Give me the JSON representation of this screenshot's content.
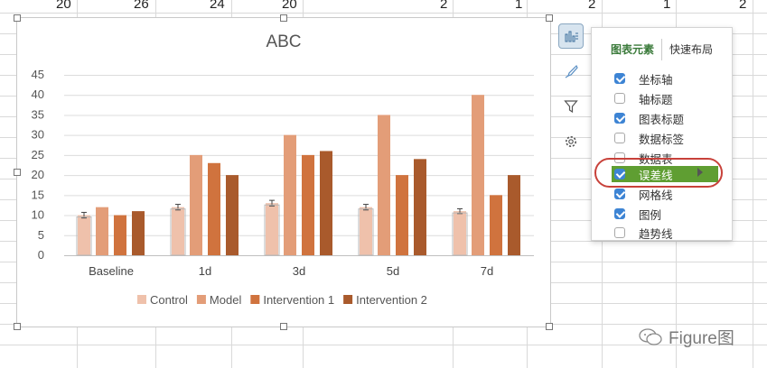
{
  "sheet": {
    "top_row_values": [
      "20",
      "26",
      "24",
      "20",
      "2",
      "1",
      "2",
      "1",
      "2"
    ]
  },
  "chart_data": {
    "type": "bar",
    "title": "ABC",
    "categories": [
      "Baseline",
      "1d",
      "3d",
      "5d",
      "7d"
    ],
    "series": [
      {
        "name": "Control",
        "color": "#efc1ab",
        "values": [
          10,
          12,
          13,
          12,
          11
        ],
        "error": [
          0.7,
          0.7,
          0.7,
          0.7,
          0.6
        ]
      },
      {
        "name": "Model",
        "color": "#e39d78",
        "values": [
          12,
          25,
          30,
          35,
          40
        ]
      },
      {
        "name": "Intervention 1",
        "color": "#d0733e",
        "values": [
          10,
          23,
          25,
          20,
          15
        ]
      },
      {
        "name": "Intervention 2",
        "color": "#a95a2c",
        "values": [
          11,
          20,
          26,
          24,
          20
        ]
      }
    ],
    "ylim": [
      0,
      45
    ],
    "yticks": [
      "0",
      "5",
      "10",
      "15",
      "20",
      "25",
      "30",
      "35",
      "40",
      "45"
    ],
    "grid": true,
    "legend_position": "bottom"
  },
  "tools": {
    "chart_elements": "chart-elements-icon",
    "styles": "brush-icon",
    "filters": "filter-icon",
    "settings": "gear-icon"
  },
  "panel": {
    "tab_elements": "图表元素",
    "tab_layout": "快速布局",
    "items": [
      {
        "label": "坐标轴",
        "checked": true
      },
      {
        "label": "轴标题",
        "checked": false
      },
      {
        "label": "图表标题",
        "checked": true
      },
      {
        "label": "数据标签",
        "checked": false
      },
      {
        "label": "数据表",
        "checked": false
      },
      {
        "label": "误差线",
        "checked": true
      },
      {
        "label": "网格线",
        "checked": true
      },
      {
        "label": "图例",
        "checked": true
      },
      {
        "label": "趋势线",
        "checked": false
      }
    ],
    "highlight_color": "#5f9e32",
    "annotation_color": "#c8413a"
  },
  "watermark": {
    "text": "Figure图"
  }
}
